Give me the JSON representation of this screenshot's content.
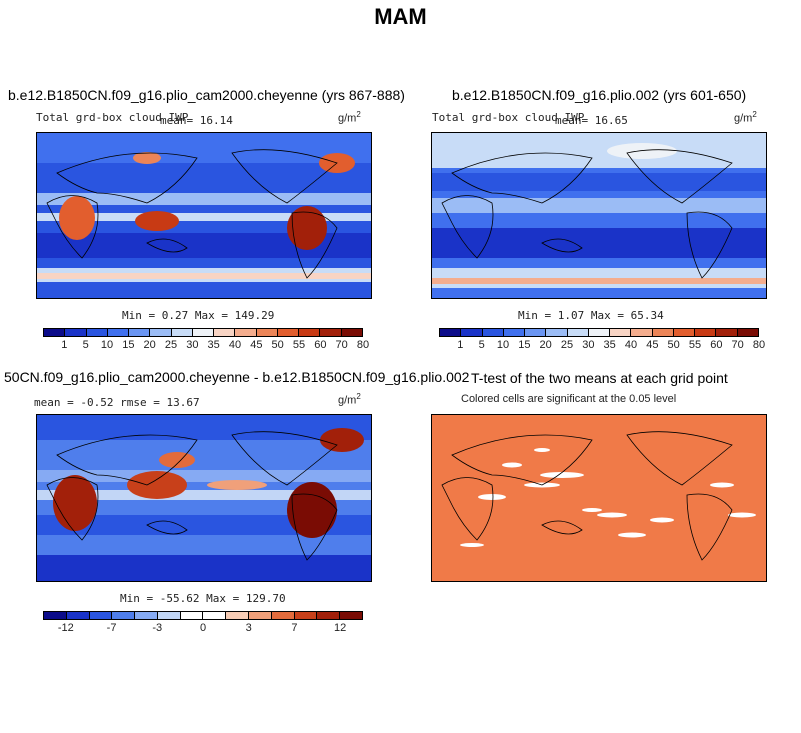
{
  "page_title": "MAM",
  "panels": {
    "top_left": {
      "title": "b.e12.B1850CN.f09_g16.plio_cam2000.cheyenne (yrs 867-888)",
      "subtitle": "Total grd-box cloud IWP",
      "mean": "mean=  16.14",
      "units": "g/m",
      "units_exp": "2",
      "minmax": "Min =   0.27 Max = 149.29"
    },
    "top_right": {
      "title": "b.e12.B1850CN.f09_g16.plio.002 (yrs 601-650)",
      "subtitle": "Total grd-box cloud IWP",
      "mean": "mean=  16.65",
      "units": "g/m",
      "units_exp": "2",
      "minmax": "Min =   1.07 Max =  65.34"
    },
    "bottom_left": {
      "title": "50CN.f09_g16.plio_cam2000.cheyenne - b.e12.B1850CN.f09_g16.plio.002",
      "stats": "mean =  -0.52    rmse =  13.67",
      "units": "g/m",
      "units_exp": "2",
      "minmax": "Min = -55.62 Max = 129.70"
    },
    "bottom_right": {
      "title": "T-test of the two means at each grid point",
      "subtitle": "Colored cells are significant at the 0.05 level"
    }
  },
  "colorbars": {
    "abs": {
      "colors": [
        "#0c0c8a",
        "#1a33c8",
        "#2a55e0",
        "#4070ee",
        "#6a95f2",
        "#9bbcf5",
        "#c8dcf7",
        "#eef2f7",
        "#f8d4c4",
        "#f4ad8e",
        "#ec8558",
        "#e25e2e",
        "#c83a14",
        "#a2200a",
        "#7a0c04"
      ],
      "labels": [
        "1",
        "5",
        "10",
        "15",
        "20",
        "25",
        "30",
        "35",
        "40",
        "45",
        "50",
        "55",
        "60",
        "70",
        "80"
      ]
    },
    "diff": {
      "colors": [
        "#0c0c8a",
        "#1a33c8",
        "#2a55e0",
        "#4f7eec",
        "#86aaf3",
        "#c2d6f6",
        "#ffffff",
        "#ffffff",
        "#f8cdb6",
        "#f0a07a",
        "#e36b3c",
        "#c8401a",
        "#a2200a",
        "#7a0c04"
      ],
      "labels": [
        "-12",
        "-7",
        "-3",
        "0",
        "3",
        "7",
        "12"
      ]
    }
  },
  "colors": {
    "ttest_fill": "#f07a48"
  }
}
